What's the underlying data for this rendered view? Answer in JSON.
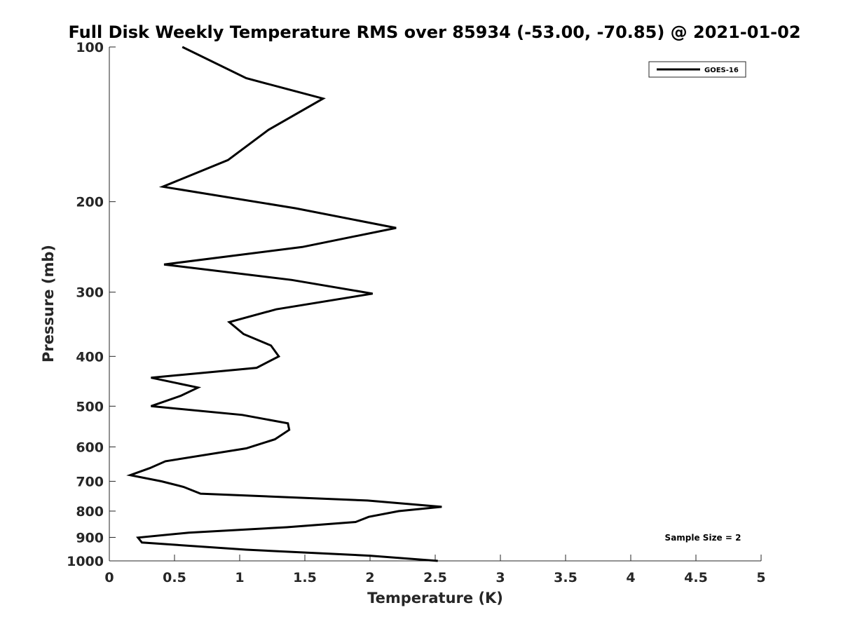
{
  "chart_data": {
    "type": "line",
    "title": "Full Disk Weekly Temperature RMS over 85934 (-53.00, -70.85) @ 2021-01-02",
    "xlabel": "Temperature (K)",
    "ylabel": "Pressure (mb)",
    "xlim": [
      0,
      5
    ],
    "ylim": [
      100,
      1000
    ],
    "y_scale": "log",
    "y_reversed": true,
    "x_ticks": [
      0,
      0.5,
      1,
      1.5,
      2,
      2.5,
      3,
      3.5,
      4,
      4.5,
      5
    ],
    "x_tick_labels": [
      "0",
      "0.5",
      "1",
      "1.5",
      "2",
      "2.5",
      "3",
      "3.5",
      "4",
      "4.5",
      "5"
    ],
    "y_ticks": [
      100,
      200,
      300,
      400,
      500,
      600,
      700,
      800,
      900,
      1000
    ],
    "y_tick_labels": [
      "100",
      "200",
      "300",
      "400",
      "500",
      "600",
      "700",
      "800",
      "900",
      "1000"
    ],
    "grid": false,
    "legend_position": "top-right",
    "series": [
      {
        "name": "GOES-16",
        "color": "#000000",
        "points": [
          [
            0.56,
            100
          ],
          [
            1.05,
            115
          ],
          [
            1.64,
            126
          ],
          [
            1.22,
            145
          ],
          [
            0.91,
            166
          ],
          [
            0.41,
            187
          ],
          [
            1.43,
            206
          ],
          [
            2.2,
            225
          ],
          [
            1.48,
            245
          ],
          [
            0.42,
            265
          ],
          [
            1.4,
            284
          ],
          [
            2.02,
            302
          ],
          [
            1.28,
            324
          ],
          [
            0.92,
            343
          ],
          [
            1.03,
            362
          ],
          [
            1.24,
            381
          ],
          [
            1.3,
            400
          ],
          [
            1.13,
            421
          ],
          [
            0.32,
            440
          ],
          [
            0.68,
            460
          ],
          [
            0.55,
            477
          ],
          [
            0.32,
            500
          ],
          [
            1.02,
            520
          ],
          [
            1.37,
            540
          ],
          [
            1.38,
            556
          ],
          [
            1.27,
            580
          ],
          [
            1.05,
            604
          ],
          [
            0.43,
            640
          ],
          [
            0.31,
            660
          ],
          [
            0.16,
            681
          ],
          [
            0.4,
            700
          ],
          [
            0.57,
            718
          ],
          [
            0.7,
            740
          ],
          [
            1.98,
            763
          ],
          [
            2.55,
            785
          ],
          [
            2.22,
            800
          ],
          [
            1.99,
            821
          ],
          [
            1.89,
            840
          ],
          [
            1.36,
            860
          ],
          [
            0.61,
            881
          ],
          [
            0.22,
            901
          ],
          [
            0.25,
            921
          ],
          [
            1.05,
            951
          ],
          [
            2.0,
            977
          ],
          [
            2.52,
            1000
          ]
        ]
      }
    ],
    "annotations": [
      "Sample Size = 2"
    ]
  }
}
